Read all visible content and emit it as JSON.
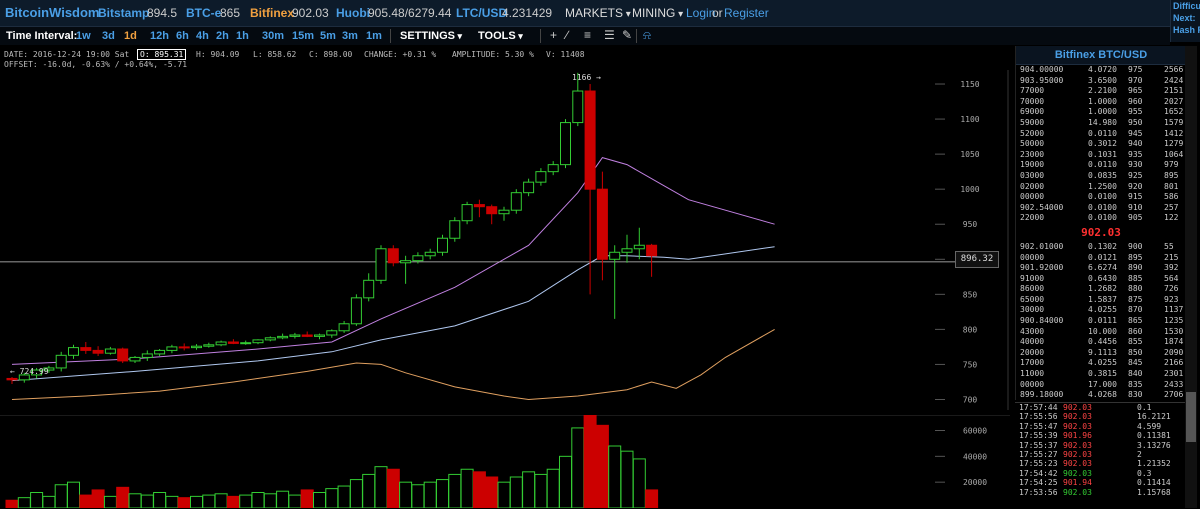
{
  "header": {
    "brand": "BitcoinWisdom",
    "markets": [
      {
        "name": "Bitstamp",
        "price": "894.5",
        "active": false
      },
      {
        "name": "BTC-e",
        "price": "865",
        "active": false
      },
      {
        "name": "Bitfinex",
        "price": "902.03",
        "active": true
      },
      {
        "name": "Huobi",
        "price": "905.48/6279.44",
        "active": false
      },
      {
        "name": "LTC/USD",
        "price": "4.231429",
        "active": false
      }
    ],
    "markets_menu": "MARKETS",
    "mining_menu": "MINING",
    "login": "Login",
    "or": "or",
    "register": "Register",
    "right_labels": [
      "Difficu",
      "Next:",
      "Hash R"
    ]
  },
  "toolbar": {
    "time_interval_label": "Time Interval:",
    "intervals": [
      "1w",
      "3d",
      "1d",
      "12h",
      "6h",
      "4h",
      "2h",
      "1h",
      "30m",
      "15m",
      "5m",
      "3m",
      "1m"
    ],
    "active_interval": "1d",
    "settings": "SETTINGS",
    "tools": "TOOLS",
    "tool_icons": [
      "plus-icon",
      "line-icon",
      "hlines-icon",
      "fib-icon",
      "pen-icon",
      "bell-icon"
    ]
  },
  "info": {
    "date": "DATE: 2016-12-24 19:00 Sat",
    "open": "O: 895.31",
    "high": "H: 904.09",
    "low": "L: 858.62",
    "close": "C: 898.00",
    "change": "CHANGE: +0.31 %",
    "amplitude": "AMPLITUDE: 5.30 %",
    "volume": "V: 11408",
    "offset": "OFFSET: -16.0d, -0.63% / +0.64%, -5.71"
  },
  "chart": {
    "current_price": "896.32",
    "high_marker": "1166",
    "low_marker": "724.99",
    "colors": {
      "up": "#33cc33",
      "down": "#cc0000",
      "ema_fast": "#c080e0",
      "ema_slow": "#b0c8f0",
      "ema_long": "#e0a060"
    }
  },
  "chart_data": {
    "type": "candlestick",
    "y_ticks": [
      700,
      750,
      800,
      850,
      900,
      950,
      1000,
      1050,
      1100,
      1150
    ],
    "ylim": [
      685,
      1170
    ],
    "vol_ticks": [
      "60000",
      "40000",
      "20000"
    ],
    "vol_lim": [
      0,
      72000
    ],
    "candles": [
      [
        730,
        732,
        722,
        728
      ],
      [
        728,
        738,
        724,
        735
      ],
      [
        735,
        745,
        730,
        742
      ],
      [
        742,
        748,
        738,
        745
      ],
      [
        745,
        768,
        740,
        763
      ],
      [
        763,
        778,
        758,
        774
      ],
      [
        774,
        782,
        765,
        770
      ],
      [
        770,
        776,
        762,
        766
      ],
      [
        766,
        775,
        764,
        772
      ],
      [
        772,
        774,
        752,
        755
      ],
      [
        755,
        762,
        752,
        760
      ],
      [
        760,
        770,
        755,
        765
      ],
      [
        765,
        772,
        762,
        770
      ],
      [
        770,
        778,
        766,
        775
      ],
      [
        775,
        780,
        770,
        774
      ],
      [
        774,
        779,
        771,
        776
      ],
      [
        776,
        781,
        774,
        778
      ],
      [
        778,
        784,
        776,
        782
      ],
      [
        782,
        786,
        779,
        780
      ],
      [
        780,
        784,
        778,
        781
      ],
      [
        781,
        786,
        779,
        785
      ],
      [
        785,
        790,
        783,
        788
      ],
      [
        788,
        794,
        786,
        790
      ],
      [
        790,
        795,
        787,
        792
      ],
      [
        792,
        797,
        789,
        790
      ],
      [
        790,
        794,
        786,
        792
      ],
      [
        792,
        800,
        788,
        798
      ],
      [
        798,
        812,
        795,
        808
      ],
      [
        808,
        850,
        805,
        845
      ],
      [
        845,
        880,
        840,
        870
      ],
      [
        870,
        920,
        865,
        915
      ],
      [
        915,
        920,
        890,
        895
      ],
      [
        895,
        905,
        865,
        898
      ],
      [
        898,
        910,
        894,
        905
      ],
      [
        905,
        915,
        900,
        910
      ],
      [
        910,
        935,
        905,
        930
      ],
      [
        930,
        960,
        925,
        955
      ],
      [
        955,
        982,
        950,
        978
      ],
      [
        978,
        985,
        960,
        975
      ],
      [
        975,
        978,
        950,
        965
      ],
      [
        965,
        975,
        955,
        970
      ],
      [
        970,
        1000,
        965,
        995
      ],
      [
        995,
        1015,
        990,
        1010
      ],
      [
        1010,
        1030,
        1005,
        1025
      ],
      [
        1025,
        1040,
        1020,
        1035
      ],
      [
        1035,
        1100,
        1030,
        1095
      ],
      [
        1095,
        1166,
        1090,
        1140
      ],
      [
        1140,
        1150,
        850,
        1000
      ],
      [
        1000,
        1025,
        870,
        900
      ],
      [
        900,
        920,
        815,
        910
      ],
      [
        910,
        935,
        895,
        915
      ],
      [
        915,
        945,
        900,
        920
      ],
      [
        920,
        922,
        875,
        905
      ]
    ],
    "volumes": [
      6000,
      8000,
      12000,
      9000,
      18000,
      20000,
      10000,
      14000,
      9000,
      16000,
      11000,
      10000,
      12000,
      9000,
      8000,
      9000,
      10000,
      11000,
      9000,
      10000,
      12000,
      11000,
      13000,
      10000,
      14000,
      12000,
      15000,
      17000,
      22000,
      26000,
      32000,
      30000,
      20000,
      18000,
      20000,
      22000,
      26000,
      30000,
      28000,
      24000,
      20000,
      24000,
      28000,
      26000,
      30000,
      40000,
      62000,
      72000,
      64000,
      48000,
      44000,
      38000,
      14000
    ],
    "ema_fast": [
      [
        0,
        750
      ],
      [
        10,
        758
      ],
      [
        20,
        772
      ],
      [
        26,
        782
      ],
      [
        30,
        815
      ],
      [
        36,
        860
      ],
      [
        42,
        920
      ],
      [
        46,
        995
      ],
      [
        48,
        1045
      ],
      [
        50,
        1035
      ],
      [
        53,
        1005
      ],
      [
        55,
        985
      ],
      [
        62,
        950
      ]
    ],
    "ema_slow": [
      [
        0,
        727
      ],
      [
        10,
        740
      ],
      [
        20,
        755
      ],
      [
        26,
        768
      ],
      [
        30,
        785
      ],
      [
        36,
        805
      ],
      [
        42,
        840
      ],
      [
        46,
        885
      ],
      [
        48,
        905
      ],
      [
        50,
        905
      ],
      [
        53,
        903
      ],
      [
        55,
        900
      ],
      [
        62,
        918
      ]
    ],
    "ema_long": [
      [
        0,
        700
      ],
      [
        6,
        705
      ],
      [
        12,
        712
      ],
      [
        18,
        725
      ],
      [
        24,
        740
      ],
      [
        28,
        752
      ],
      [
        30,
        750
      ],
      [
        32,
        738
      ],
      [
        36,
        718
      ],
      [
        40,
        705
      ],
      [
        42,
        700
      ],
      [
        46,
        705
      ],
      [
        50,
        714
      ],
      [
        52,
        725
      ],
      [
        54,
        716
      ],
      [
        56,
        735
      ],
      [
        58,
        760
      ],
      [
        62,
        800
      ]
    ]
  },
  "orderbook": {
    "title": "Bitfinex BTC/USD",
    "mid_price": "902.03",
    "asks": [
      [
        "904.00000",
        "4.0720",
        "975",
        "2566"
      ],
      [
        "903.95000",
        "3.6500",
        "970",
        "2424"
      ],
      [
        "77000",
        "2.2100",
        "965",
        "2151"
      ],
      [
        "70000",
        "1.0000",
        "960",
        "2027"
      ],
      [
        "69000",
        "1.0000",
        "955",
        "1652"
      ],
      [
        "59000",
        "14.980",
        "950",
        "1579"
      ],
      [
        "52000",
        "0.0110",
        "945",
        "1412"
      ],
      [
        "50000",
        "0.3012",
        "940",
        "1279"
      ],
      [
        "23000",
        "0.1031",
        "935",
        "1064"
      ],
      [
        "19000",
        "0.0110",
        "930",
        "979"
      ],
      [
        "03000",
        "0.0835",
        "925",
        "895"
      ],
      [
        "02000",
        "1.2500",
        "920",
        "801"
      ],
      [
        "00000",
        "0.0100",
        "915",
        "586"
      ],
      [
        "902.54000",
        "0.0100",
        "910",
        "257"
      ],
      [
        "22000",
        "0.0100",
        "905",
        "122"
      ]
    ],
    "bids": [
      [
        "902.01000",
        "0.1302",
        "900",
        "55"
      ],
      [
        "00000",
        "0.0121",
        "895",
        "215"
      ],
      [
        "901.92000",
        "6.6274",
        "890",
        "392"
      ],
      [
        "91000",
        "0.6430",
        "885",
        "564"
      ],
      [
        "86000",
        "1.2682",
        "880",
        "726"
      ],
      [
        "65000",
        "1.5837",
        "875",
        "923"
      ],
      [
        "30000",
        "4.0255",
        "870",
        "1137"
      ],
      [
        "900.84000",
        "0.0111",
        "865",
        "1235"
      ],
      [
        "43000",
        "10.000",
        "860",
        "1530"
      ],
      [
        "40000",
        "0.4456",
        "855",
        "1874"
      ],
      [
        "20000",
        "9.1113",
        "850",
        "2090"
      ],
      [
        "17000",
        "4.0255",
        "845",
        "2166"
      ],
      [
        "11000",
        "0.3815",
        "840",
        "2301"
      ],
      [
        "00000",
        "17.000",
        "835",
        "2433"
      ],
      [
        "899.18000",
        "4.0268",
        "830",
        "2706"
      ]
    ]
  },
  "trades": [
    [
      "17:57:44",
      "902.03",
      "0.1",
      "dn"
    ],
    [
      "17:55:56",
      "902.03",
      "16.2121",
      "dn"
    ],
    [
      "17:55:47",
      "902.03",
      "4.599",
      "dn"
    ],
    [
      "17:55:39",
      "901.96",
      "0.11381",
      "dn"
    ],
    [
      "17:55:37",
      "902.03",
      "3.13276",
      "dn"
    ],
    [
      "17:55:27",
      "902.03",
      "2",
      "dn"
    ],
    [
      "17:55:23",
      "902.03",
      "1.21352",
      "dn"
    ],
    [
      "17:54:42",
      "902.03",
      "0.3",
      "up"
    ],
    [
      "17:54:25",
      "901.94",
      "0.11414",
      "dn"
    ],
    [
      "17:53:56",
      "902.03",
      "1.15768",
      "up"
    ]
  ]
}
